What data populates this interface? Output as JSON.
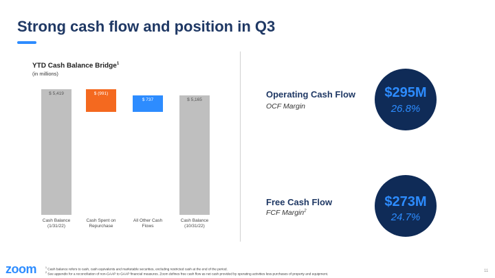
{
  "slide": {
    "title": "Strong cash flow and position in Q3",
    "logo": "zoom",
    "page": "11",
    "footnotes": [
      {
        "mark": "1",
        "text": "Cash balance refers to cash, cash equivalents and marketable securities, excluding restricted cash at the end of the period."
      },
      {
        "mark": "2",
        "text": "See appendix for a reconciliation of non-GAAP to GAAP financial measures. Zoom defines free cash flow as net cash provided by operating activities less purchases of property and equipment."
      }
    ]
  },
  "chart_data": {
    "type": "waterfall",
    "title": "YTD Cash Balance Bridge",
    "title_note": "1",
    "subtitle": "(in millions)",
    "categories": [
      "Cash Balance (1/31/22)",
      "Cash Spent on Repurchase",
      "All Other Cash Flows",
      "Cash Balance (10/31/22)"
    ],
    "values": [
      5419,
      -991,
      737,
      5165
    ],
    "value_labels": [
      "$ 5,419",
      "$ (991)",
      "$ 737",
      "$ 5,165"
    ],
    "measure": [
      "absolute",
      "relative",
      "relative",
      "absolute"
    ],
    "colors": [
      "#bfbfbf",
      "#f4691f",
      "#2d8cff",
      "#bfbfbf"
    ]
  },
  "kpis": [
    {
      "label": "Operating Cash Flow",
      "sublabel": "OCF Margin",
      "value": "$295M",
      "margin": "26.8%"
    },
    {
      "label": "Free Cash Flow",
      "sublabel": "FCF Margin",
      "note": "2",
      "value": "$273M",
      "margin": "24.7%"
    }
  ]
}
